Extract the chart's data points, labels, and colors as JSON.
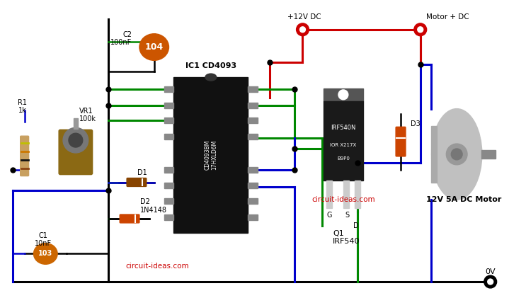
{
  "bg_color": "#ffffff",
  "wire_black": "#000000",
  "wire_red": "#cc0000",
  "wire_green": "#008800",
  "wire_blue": "#0000cc",
  "labels": {
    "C2": "C2\n100nF",
    "C1": "C1\n10nF",
    "R1": "R1\n1k",
    "VR1": "VR1\n100k",
    "D1": "D1",
    "D2": "D2\n1N4148",
    "D3": "D3",
    "IC1": "IC1 CD4093",
    "Q1_label": "Q1\nIRF540",
    "Motor": "12V 5A DC Motor",
    "plus12V": "+12V DC",
    "motorDC": "Motor + DC",
    "G": "G",
    "S": "S",
    "D_label": "D",
    "zero_v": "0V",
    "website1": "circuit-ideas.com",
    "website2": "circuit-ideas.com",
    "cap104": "104",
    "cap103": "103",
    "ic_text1": "CD4093BM",
    "ic_text2": "17HXLD6M",
    "mos_text1": "IRF540N",
    "mos_text2": "IOR X217X",
    "mos_text3": "B9P0"
  }
}
